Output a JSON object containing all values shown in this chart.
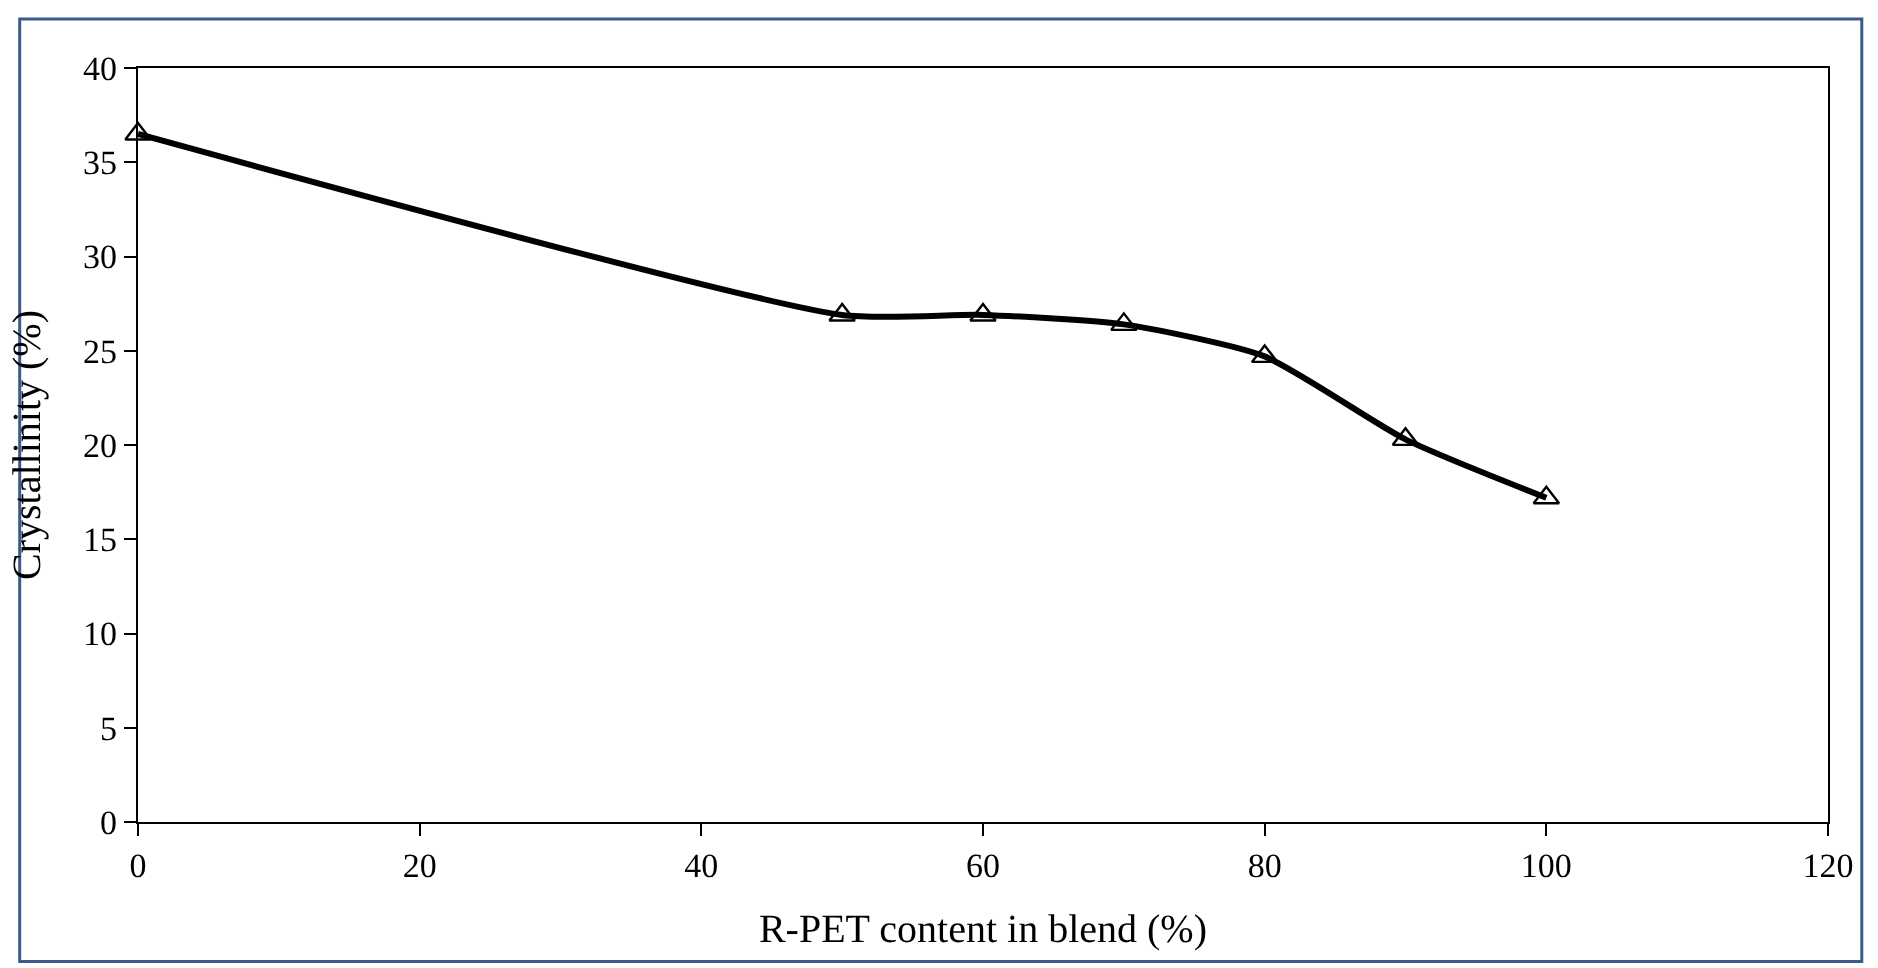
{
  "chart_data": {
    "type": "line",
    "xlabel": "R-PET content in blend (%)",
    "ylabel": "Crystallinity (%)",
    "x": [
      0,
      50,
      60,
      70,
      80,
      90,
      100
    ],
    "series": [
      {
        "color": "#000000",
        "values": [
          36.5,
          26.9,
          26.9,
          26.4,
          24.7,
          20.3,
          17.2
        ]
      }
    ],
    "xlim": [
      0,
      120
    ],
    "xticks": [
      0,
      20,
      40,
      60,
      80,
      100,
      120
    ],
    "ylim": [
      0,
      40
    ],
    "yticks": [
      0,
      5,
      10,
      15,
      20,
      25,
      30,
      35,
      40
    ],
    "grid": false,
    "marker": "triangle",
    "line_style": "solid"
  }
}
